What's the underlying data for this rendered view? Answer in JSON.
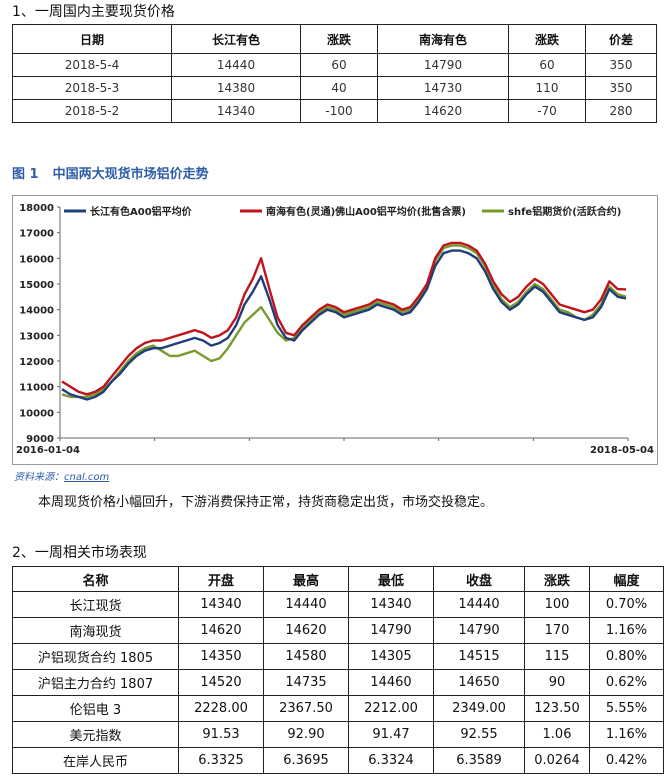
{
  "section1": {
    "title": "1、一周国内主要现货价格",
    "headers": [
      "日期",
      "长江有色",
      "涨跌",
      "南海有色",
      "涨跌",
      "价差"
    ],
    "rows": [
      [
        "2018-5-4",
        "14440",
        "60",
        "14790",
        "60",
        "350"
      ],
      [
        "2018-5-3",
        "14380",
        "40",
        "14730",
        "110",
        "350"
      ],
      [
        "2018-5-2",
        "14340",
        "-100",
        "14620",
        "-70",
        "280"
      ]
    ]
  },
  "figure": {
    "num": "图 1",
    "title": "中国两大现货市场铝价走势",
    "source_prefix": "资料来源：",
    "source_link": "cnal.com"
  },
  "chart_data": {
    "type": "line",
    "x_start_label": "2016-01-04",
    "x_end_label": "2018-05-04",
    "ylim": [
      9000,
      18000
    ],
    "y_ticks": [
      "18000",
      "17000",
      "16000",
      "15000",
      "14000",
      "13000",
      "12000",
      "11000",
      "10000",
      "9000"
    ],
    "series": [
      {
        "name": "长江有色A00铝平均价",
        "color": "#1f3d7a",
        "values": [
          10900,
          10700,
          10600,
          10500,
          10600,
          10800,
          11200,
          11500,
          11900,
          12200,
          12400,
          12500,
          12500,
          12600,
          12700,
          12800,
          12900,
          12800,
          12600,
          12700,
          12900,
          13400,
          14200,
          14700,
          15300,
          14400,
          13400,
          12900,
          12800,
          13200,
          13500,
          13800,
          14000,
          13900,
          13700,
          13800,
          13900,
          14000,
          14200,
          14100,
          14000,
          13800,
          13900,
          14300,
          14800,
          15700,
          16200,
          16300,
          16300,
          16200,
          16000,
          15500,
          14800,
          14300,
          14000,
          14200,
          14600,
          14900,
          14700,
          14300,
          13900,
          13800,
          13700,
          13600,
          13700,
          14100,
          14800,
          14500,
          14440
        ]
      },
      {
        "name": "南海有色(灵通)佛山A00铝平均价(批售含票)",
        "color": "#c0141c",
        "values": [
          11200,
          11000,
          10800,
          10700,
          10800,
          11000,
          11400,
          11800,
          12200,
          12500,
          12700,
          12800,
          12800,
          12900,
          13000,
          13100,
          13200,
          13100,
          12900,
          13000,
          13200,
          13700,
          14600,
          15200,
          16000,
          14800,
          13700,
          13100,
          13000,
          13400,
          13700,
          14000,
          14200,
          14100,
          13900,
          14000,
          14100,
          14200,
          14400,
          14300,
          14200,
          14000,
          14100,
          14500,
          15000,
          16000,
          16500,
          16600,
          16600,
          16500,
          16300,
          15800,
          15100,
          14600,
          14300,
          14500,
          14900,
          15200,
          15000,
          14600,
          14200,
          14100,
          14000,
          13900,
          14000,
          14400,
          15100,
          14800,
          14790
        ]
      },
      {
        "name": "shfe铝期货价(活跃合约)",
        "color": "#7a9a2e",
        "values": [
          10700,
          10600,
          10600,
          10600,
          10700,
          10900,
          11200,
          11600,
          12000,
          12300,
          12500,
          12600,
          12400,
          12200,
          12200,
          12300,
          12400,
          12200,
          12000,
          12100,
          12500,
          13000,
          13500,
          13800,
          14100,
          13600,
          13100,
          12800,
          12900,
          13300,
          13600,
          13900,
          14100,
          14000,
          13800,
          13900,
          14000,
          14100,
          14300,
          14200,
          14100,
          13900,
          14000,
          14400,
          14900,
          15900,
          16400,
          16500,
          16500,
          16400,
          16200,
          15700,
          15000,
          14400,
          14100,
          14300,
          14700,
          15000,
          14800,
          14400,
          14000,
          13900,
          13700,
          13600,
          13800,
          14200,
          14900,
          14600,
          14500
        ]
      }
    ]
  },
  "note": "本周现货价格小幅回升，下游消费保持正常，持货商稳定出货，市场交投稳定。",
  "section2": {
    "title": "2、一周相关市场表现",
    "headers": [
      "名称",
      "开盘",
      "最高",
      "最低",
      "收盘",
      "涨跌",
      "幅度"
    ],
    "rows": [
      [
        "长江现货",
        "14340",
        "14440",
        "14340",
        "14440",
        "100",
        "0.70%"
      ],
      [
        "南海现货",
        "14620",
        "14620",
        "14790",
        "14790",
        "170",
        "1.16%"
      ],
      [
        "沪铝现货合约 1805",
        "14350",
        "14580",
        "14305",
        "14515",
        "115",
        "0.80%"
      ],
      [
        "沪铝主力合约 1807",
        "14520",
        "14735",
        "14460",
        "14650",
        "90",
        "0.62%"
      ],
      [
        "伦铝电 3",
        "2228.00",
        "2367.50",
        "2212.00",
        "2349.00",
        "123.50",
        "5.55%"
      ],
      [
        "美元指数",
        "91.53",
        "92.90",
        "91.47",
        "92.55",
        "1.06",
        "1.16%"
      ],
      [
        "在岸人民币",
        "6.3325",
        "6.3695",
        "6.3324",
        "6.3589",
        "0.0264",
        "0.42%"
      ]
    ]
  }
}
